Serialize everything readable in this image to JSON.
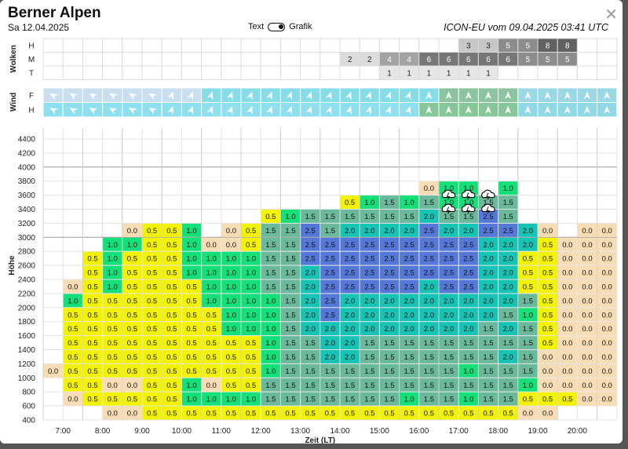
{
  "header": {
    "title": "Berner Alpen",
    "date": "Sa 12.04.2025",
    "toggle_text": "Text",
    "toggle_grafik": "Grafik",
    "model": "ICON-EU vom 09.04.2025 03:41 UTC",
    "close_icon": "close-icon"
  },
  "clouds": {
    "label": "Wolken",
    "rows": [
      {
        "name": "H",
        "values": {
          "24": 3,
          "25": 3,
          "26": 5,
          "27": 5,
          "28": 8,
          "29": 8
        }
      },
      {
        "name": "M",
        "values": {
          "18": 2,
          "19": 2,
          "20": 4,
          "21": 4,
          "22": 6,
          "23": 6,
          "24": 6,
          "25": 6,
          "26": 6,
          "27": 5,
          "28": 5,
          "29": 5
        }
      },
      {
        "name": "T",
        "values": {
          "20": 1,
          "21": 1,
          "22": 1,
          "23": 1,
          "24": 1,
          "25": 1
        }
      }
    ]
  },
  "wind": {
    "label": "Wind",
    "row_labels": [
      "F",
      "H"
    ],
    "icon": "wind-arrow-icon"
  },
  "chart_data": {
    "type": "heatmap",
    "ylabel": "Höhe",
    "xlabel": "Zeit (LT)",
    "y_ticks": [
      400,
      600,
      800,
      1000,
      1200,
      1400,
      1600,
      1800,
      2000,
      2200,
      2400,
      2600,
      2800,
      3000,
      3200,
      3400,
      3600,
      3800,
      4000,
      4200,
      4400
    ],
    "x_ticks": [
      "7:00",
      "8:00",
      "9:00",
      "10:00",
      "11:00",
      "12:00",
      "13:00",
      "14:00",
      "15:00",
      "16:00",
      "17:00",
      "18:00",
      "19:00",
      "20:00"
    ],
    "x_step_minutes": 30,
    "x_start": "6:30",
    "y_start": 400,
    "y_step": 200,
    "color_scale": {
      "0.0": "#f7dcb4",
      "0.5": "#f3f300",
      "1.0": "#14e07a",
      "1.5": "#6bb99c",
      "2.0": "#16c4b6",
      "2.5": "#5578d8"
    },
    "overdevelopment_icon": "cloud-lightning-icon",
    "overdevelopment_columns": [
      23,
      24,
      25
    ],
    "columns": [
      {
        "col": 3,
        "start": 1000,
        "values": [
          "0.0"
        ]
      },
      {
        "col": 4,
        "start": 600,
        "values": [
          "0.0",
          "0.5",
          "0.5",
          "0.5",
          "0.5",
          "0.5",
          "0.5",
          "1.0",
          "0.0"
        ]
      },
      {
        "col": 5,
        "start": 600,
        "values": [
          "0.5",
          "0.5",
          "0.5",
          "0.5",
          "0.5",
          "0.5",
          "0.5",
          "0.5",
          "0.5",
          "0.5",
          "0.5"
        ]
      },
      {
        "col": 6,
        "start": 400,
        "values": [
          "0.0",
          "0.5",
          "0.0",
          "0.5",
          "0.5",
          "0.5",
          "0.5",
          "0.5",
          "0.5",
          "1.0",
          "1.0",
          "1.0",
          "1.0"
        ]
      },
      {
        "col": 7,
        "start": 400,
        "values": [
          "0.0",
          "0.5",
          "0.0",
          "0.5",
          "0.5",
          "0.5",
          "0.5",
          "0.5",
          "0.5",
          "0.5",
          "0.5",
          "0.5",
          "1.0",
          "0.0"
        ]
      },
      {
        "col": 8,
        "start": 400,
        "values": [
          "0.5",
          "0.5",
          "0.5",
          "0.5",
          "0.5",
          "0.5",
          "0.5",
          "0.5",
          "0.5",
          "0.5",
          "0.5",
          "0.5",
          "0.5",
          "0.5"
        ]
      },
      {
        "col": 9,
        "start": 400,
        "values": [
          "0.5",
          "0.5",
          "0.5",
          "0.5",
          "0.5",
          "0.5",
          "0.5",
          "0.5",
          "0.5",
          "0.5",
          "0.5",
          "0.5",
          "0.5",
          "0.5"
        ]
      },
      {
        "col": 10,
        "start": 400,
        "values": [
          "0.5",
          "1.0",
          "1.0",
          "0.5",
          "0.5",
          "0.5",
          "0.5",
          "0.5",
          "0.5",
          "0.5",
          "1.0",
          "1.0",
          "1.0",
          "1.0"
        ]
      },
      {
        "col": 11,
        "start": 400,
        "values": [
          "0.5",
          "1.0",
          "0.0",
          "0.5",
          "0.5",
          "0.5",
          "0.5",
          "0.5",
          "1.0",
          "1.0",
          "1.0",
          "1.0",
          "0.0"
        ]
      },
      {
        "col": 12,
        "start": 400,
        "values": [
          "0.5",
          "1.0",
          "0.5",
          "0.5",
          "0.5",
          "0.5",
          "1.0",
          "1.0",
          "1.0",
          "1.0",
          "1.0",
          "1.0",
          "0.0",
          "0.0"
        ]
      },
      {
        "col": 13,
        "start": 400,
        "values": [
          "0.5",
          "1.0",
          "0.5",
          "0.5",
          "0.5",
          "0.5",
          "1.0",
          "1.0",
          "1.0",
          "1.0",
          "1.0",
          "1.0",
          "0.5",
          "0.5"
        ]
      },
      {
        "col": 14,
        "start": 400,
        "values": [
          "0.5",
          "1.5",
          "1.5",
          "1.0",
          "1.0",
          "1.0",
          "1.0",
          "1.0",
          "1.0",
          "1.5",
          "1.5",
          "1.5",
          "1.5",
          "1.5",
          "0.5"
        ]
      },
      {
        "col": 15,
        "start": 400,
        "values": [
          "0.5",
          "1.5",
          "1.5",
          "1.5",
          "1.5",
          "1.5",
          "1.5",
          "1.5",
          "1.5",
          "1.5",
          "1.5",
          "1.5",
          "1.5",
          "1.5",
          "1.0"
        ]
      },
      {
        "col": 16,
        "start": 400,
        "values": [
          "0.5",
          "1.5",
          "1.5",
          "1.5",
          "1.5",
          "1.5",
          "2.0",
          "2.0",
          "2.0",
          "2.0",
          "2.0",
          "2.5",
          "2.5",
          "2.5",
          "1.5"
        ]
      },
      {
        "col": 17,
        "start": 400,
        "values": [
          "0.5",
          "1.5",
          "1.5",
          "1.5",
          "2.0",
          "2.0",
          "2.0",
          "2.5",
          "2.5",
          "2.5",
          "2.5",
          "2.5",
          "2.5",
          "1.5",
          "1.5"
        ]
      },
      {
        "col": 18,
        "start": 400,
        "values": [
          "0.5",
          "1.5",
          "1.5",
          "1.5",
          "2.0",
          "2.0",
          "2.0",
          "2.0",
          "2.0",
          "2.5",
          "2.5",
          "2.5",
          "2.5",
          "2.0",
          "1.5",
          "0.5"
        ]
      },
      {
        "col": 19,
        "start": 400,
        "values": [
          "0.5",
          "1.5",
          "1.5",
          "1.5",
          "1.5",
          "1.5",
          "2.0",
          "2.0",
          "2.0",
          "2.5",
          "2.5",
          "2.5",
          "2.5",
          "2.0",
          "1.5",
          "1.0"
        ]
      },
      {
        "col": 20,
        "start": 400,
        "values": [
          "0.5",
          "1.5",
          "1.5",
          "1.5",
          "1.5",
          "1.5",
          "2.0",
          "2.0",
          "2.0",
          "2.5",
          "2.5",
          "2.5",
          "2.5",
          "2.0",
          "1.5",
          "1.5"
        ]
      },
      {
        "col": 21,
        "start": 400,
        "values": [
          "0.5",
          "1.0",
          "1.5",
          "1.5",
          "1.5",
          "1.5",
          "2.0",
          "2.0",
          "2.0",
          "2.5",
          "2.5",
          "2.5",
          "2.5",
          "2.0",
          "1.5",
          "1.0"
        ]
      },
      {
        "col": 22,
        "start": 400,
        "values": [
          "0.5",
          "1.5",
          "1.5",
          "1.5",
          "1.5",
          "1.5",
          "2.0",
          "2.0",
          "2.0",
          "2.0",
          "2.5",
          "2.5",
          "2.5",
          "2.5",
          "2.0",
          "1.5",
          "0.0"
        ]
      },
      {
        "col": 23,
        "start": 400,
        "values": [
          "0.5",
          "1.5",
          "1.5",
          "1.5",
          "1.5",
          "1.5",
          "2.0",
          "2.0",
          "2.0",
          "2.5",
          "2.5",
          "2.5",
          "2.5",
          "2.0",
          "1.5",
          "1.0",
          "1.0"
        ]
      },
      {
        "col": 24,
        "start": 400,
        "values": [
          "0.5",
          "1.0",
          "1.5",
          "1.0",
          "1.5",
          "1.5",
          "2.0",
          "2.0",
          "2.0",
          "2.5",
          "2.5",
          "2.5",
          "2.5",
          "2.0",
          "1.5",
          "1.0",
          "1.0"
        ]
      },
      {
        "col": 25,
        "start": 400,
        "values": [
          "0.5",
          "1.5",
          "1.5",
          "1.5",
          "1.5",
          "1.5",
          "1.5",
          "2.0",
          "2.0",
          "2.0",
          "2.0",
          "2.0",
          "2.0",
          "2.5",
          "2.5",
          "1.5"
        ]
      },
      {
        "col": 26,
        "start": 400,
        "values": [
          "0.5",
          "1.5",
          "1.5",
          "1.5",
          "2.0",
          "1.5",
          "2.0",
          "1.5",
          "2.0",
          "2.0",
          "2.0",
          "2.0",
          "2.0",
          "2.5",
          "1.5",
          "1.5",
          "1.0"
        ]
      },
      {
        "col": 27,
        "start": 400,
        "values": [
          "0.0",
          "0.5",
          "1.0",
          "1.5",
          "1.5",
          "1.5",
          "1.5",
          "1.0",
          "1.5",
          "0.5",
          "0.5",
          "0.5",
          "2.0",
          "2.0"
        ]
      },
      {
        "col": 28,
        "start": 400,
        "values": [
          "0.0",
          "0.5",
          "0.0",
          "0.0",
          "0.0",
          "0.5",
          "0.5",
          "0.5",
          "0.5",
          "0.5",
          "0.5",
          "0.5",
          "0.5",
          "0.0"
        ]
      },
      {
        "col": 29,
        "start": 600,
        "values": [
          "0.5",
          "0.0",
          "0.0",
          "0.0",
          "0.0",
          "0.0",
          "0.0",
          "0.0",
          "0.0",
          "0.0",
          "0.0",
          "0.0"
        ]
      },
      {
        "col": 30,
        "start": 600,
        "values": [
          "0.0",
          "0.0",
          "0.0",
          "0.0",
          "0.0",
          "0.0",
          "0.0",
          "0.0",
          "0.0",
          "0.0",
          "0.0",
          "0.0",
          "0.0"
        ]
      },
      {
        "col": 31,
        "start": 600,
        "values": [
          "0.0",
          "0.0",
          "0.0",
          "0.0",
          "0.0",
          "0.0",
          "0.0",
          "0.0",
          "0.0",
          "0.0",
          "0.0",
          "0.0",
          "0.0"
        ]
      }
    ]
  }
}
